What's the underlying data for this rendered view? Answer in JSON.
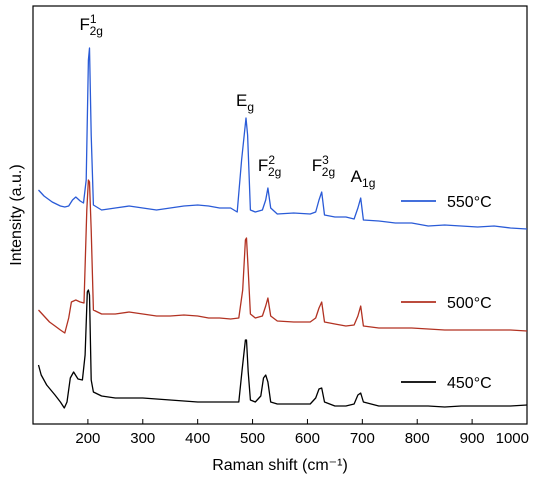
{
  "chart_data": {
    "type": "line",
    "xlabel": "Raman shift (cm⁻¹)",
    "ylabel": "Intensity (a.u.)",
    "xlim": [
      100,
      1000
    ],
    "xticks": [
      "200",
      "300",
      "400",
      "500",
      "600",
      "700",
      "800",
      "900",
      "1000"
    ],
    "grid": false,
    "legend_position": "right",
    "peaks": [
      {
        "base": "F",
        "sub": "2g",
        "sup": "1",
        "x": 203
      },
      {
        "base": "E",
        "sub": "g",
        "sup": "",
        "x": 488
      },
      {
        "base": "F",
        "sub": "2g",
        "sup": "2",
        "x": 528
      },
      {
        "base": "F",
        "sub": "2g",
        "sup": "3",
        "x": 626
      },
      {
        "base": "A",
        "sub": "1g",
        "sup": "",
        "x": 697
      }
    ],
    "series": [
      {
        "name": "550°C",
        "color": "#2a5bd7",
        "points": [
          [
            110,
            190
          ],
          [
            120,
            196
          ],
          [
            135,
            202
          ],
          [
            150,
            206
          ],
          [
            158,
            207
          ],
          [
            165,
            206
          ],
          [
            172,
            200
          ],
          [
            178,
            197
          ],
          [
            186,
            201
          ],
          [
            192,
            203
          ],
          [
            197,
            180
          ],
          [
            201,
            60
          ],
          [
            203,
            48
          ],
          [
            206,
            135
          ],
          [
            210,
            205
          ],
          [
            225,
            210
          ],
          [
            250,
            208
          ],
          [
            275,
            206
          ],
          [
            300,
            208
          ],
          [
            325,
            210
          ],
          [
            350,
            208
          ],
          [
            375,
            206
          ],
          [
            400,
            205
          ],
          [
            420,
            206
          ],
          [
            440,
            208
          ],
          [
            460,
            208
          ],
          [
            472,
            212
          ],
          [
            480,
            160
          ],
          [
            488,
            118
          ],
          [
            491,
            135
          ],
          [
            496,
            210
          ],
          [
            505,
            212
          ],
          [
            518,
            210
          ],
          [
            524,
            200
          ],
          [
            528,
            188
          ],
          [
            533,
            208
          ],
          [
            545,
            214
          ],
          [
            575,
            213
          ],
          [
            605,
            214
          ],
          [
            615,
            212
          ],
          [
            621,
            200
          ],
          [
            626,
            192
          ],
          [
            631,
            215
          ],
          [
            650,
            217
          ],
          [
            670,
            217
          ],
          [
            685,
            219
          ],
          [
            692,
            208
          ],
          [
            697,
            198
          ],
          [
            702,
            220
          ],
          [
            730,
            221
          ],
          [
            760,
            223
          ],
          [
            790,
            223
          ],
          [
            820,
            226
          ],
          [
            850,
            225
          ],
          [
            880,
            226
          ],
          [
            910,
            227
          ],
          [
            940,
            226
          ],
          [
            970,
            228
          ],
          [
            1000,
            229
          ]
        ]
      },
      {
        "name": "500°C",
        "color": "#b23222",
        "points": [
          [
            110,
            310
          ],
          [
            120,
            316
          ],
          [
            130,
            322
          ],
          [
            140,
            326
          ],
          [
            150,
            330
          ],
          [
            158,
            333
          ],
          [
            165,
            318
          ],
          [
            170,
            302
          ],
          [
            178,
            300
          ],
          [
            186,
            302
          ],
          [
            193,
            303
          ],
          [
            198,
            210
          ],
          [
            201,
            180
          ],
          [
            203,
            182
          ],
          [
            206,
            230
          ],
          [
            210,
            310
          ],
          [
            225,
            314
          ],
          [
            250,
            314
          ],
          [
            275,
            312
          ],
          [
            300,
            314
          ],
          [
            325,
            316
          ],
          [
            350,
            316
          ],
          [
            375,
            315
          ],
          [
            400,
            316
          ],
          [
            420,
            318
          ],
          [
            440,
            318
          ],
          [
            460,
            319
          ],
          [
            475,
            318
          ],
          [
            482,
            290
          ],
          [
            487,
            240
          ],
          [
            489,
            238
          ],
          [
            492,
            270
          ],
          [
            496,
            314
          ],
          [
            505,
            318
          ],
          [
            518,
            316
          ],
          [
            524,
            306
          ],
          [
            528,
            298
          ],
          [
            533,
            316
          ],
          [
            545,
            321
          ],
          [
            575,
            322
          ],
          [
            605,
            322
          ],
          [
            615,
            318
          ],
          [
            621,
            308
          ],
          [
            626,
            302
          ],
          [
            631,
            322
          ],
          [
            650,
            324
          ],
          [
            670,
            326
          ],
          [
            685,
            325
          ],
          [
            692,
            316
          ],
          [
            697,
            306
          ],
          [
            702,
            326
          ],
          [
            730,
            328
          ],
          [
            760,
            328
          ],
          [
            790,
            328
          ],
          [
            820,
            329
          ],
          [
            850,
            330
          ],
          [
            880,
            330
          ],
          [
            910,
            330
          ],
          [
            940,
            330
          ],
          [
            970,
            330
          ],
          [
            1000,
            331
          ]
        ]
      },
      {
        "name": "450°C",
        "color": "#000000",
        "points": [
          [
            110,
            365
          ],
          [
            115,
            375
          ],
          [
            125,
            385
          ],
          [
            140,
            395
          ],
          [
            150,
            402
          ],
          [
            157,
            408
          ],
          [
            162,
            402
          ],
          [
            168,
            378
          ],
          [
            174,
            372
          ],
          [
            182,
            379
          ],
          [
            190,
            380
          ],
          [
            195,
            355
          ],
          [
            199,
            292
          ],
          [
            201,
            290
          ],
          [
            203,
            295
          ],
          [
            206,
            380
          ],
          [
            210,
            392
          ],
          [
            225,
            396
          ],
          [
            250,
            398
          ],
          [
            275,
            398
          ],
          [
            300,
            398
          ],
          [
            325,
            399
          ],
          [
            350,
            400
          ],
          [
            375,
            401
          ],
          [
            400,
            402
          ],
          [
            420,
            402
          ],
          [
            440,
            402
          ],
          [
            460,
            402
          ],
          [
            475,
            402
          ],
          [
            481,
            370
          ],
          [
            487,
            340
          ],
          [
            489,
            340
          ],
          [
            492,
            372
          ],
          [
            496,
            400
          ],
          [
            505,
            402
          ],
          [
            515,
            396
          ],
          [
            520,
            378
          ],
          [
            524,
            375
          ],
          [
            528,
            382
          ],
          [
            533,
            402
          ],
          [
            545,
            404
          ],
          [
            575,
            404
          ],
          [
            605,
            404
          ],
          [
            615,
            398
          ],
          [
            621,
            389
          ],
          [
            626,
            388
          ],
          [
            631,
            402
          ],
          [
            650,
            406
          ],
          [
            670,
            406
          ],
          [
            685,
            404
          ],
          [
            692,
            395
          ],
          [
            697,
            393
          ],
          [
            702,
            402
          ],
          [
            730,
            406
          ],
          [
            760,
            406
          ],
          [
            790,
            406
          ],
          [
            820,
            406
          ],
          [
            850,
            407
          ],
          [
            880,
            406
          ],
          [
            910,
            406
          ],
          [
            940,
            406
          ],
          [
            970,
            406
          ],
          [
            1000,
            405
          ]
        ]
      }
    ]
  }
}
